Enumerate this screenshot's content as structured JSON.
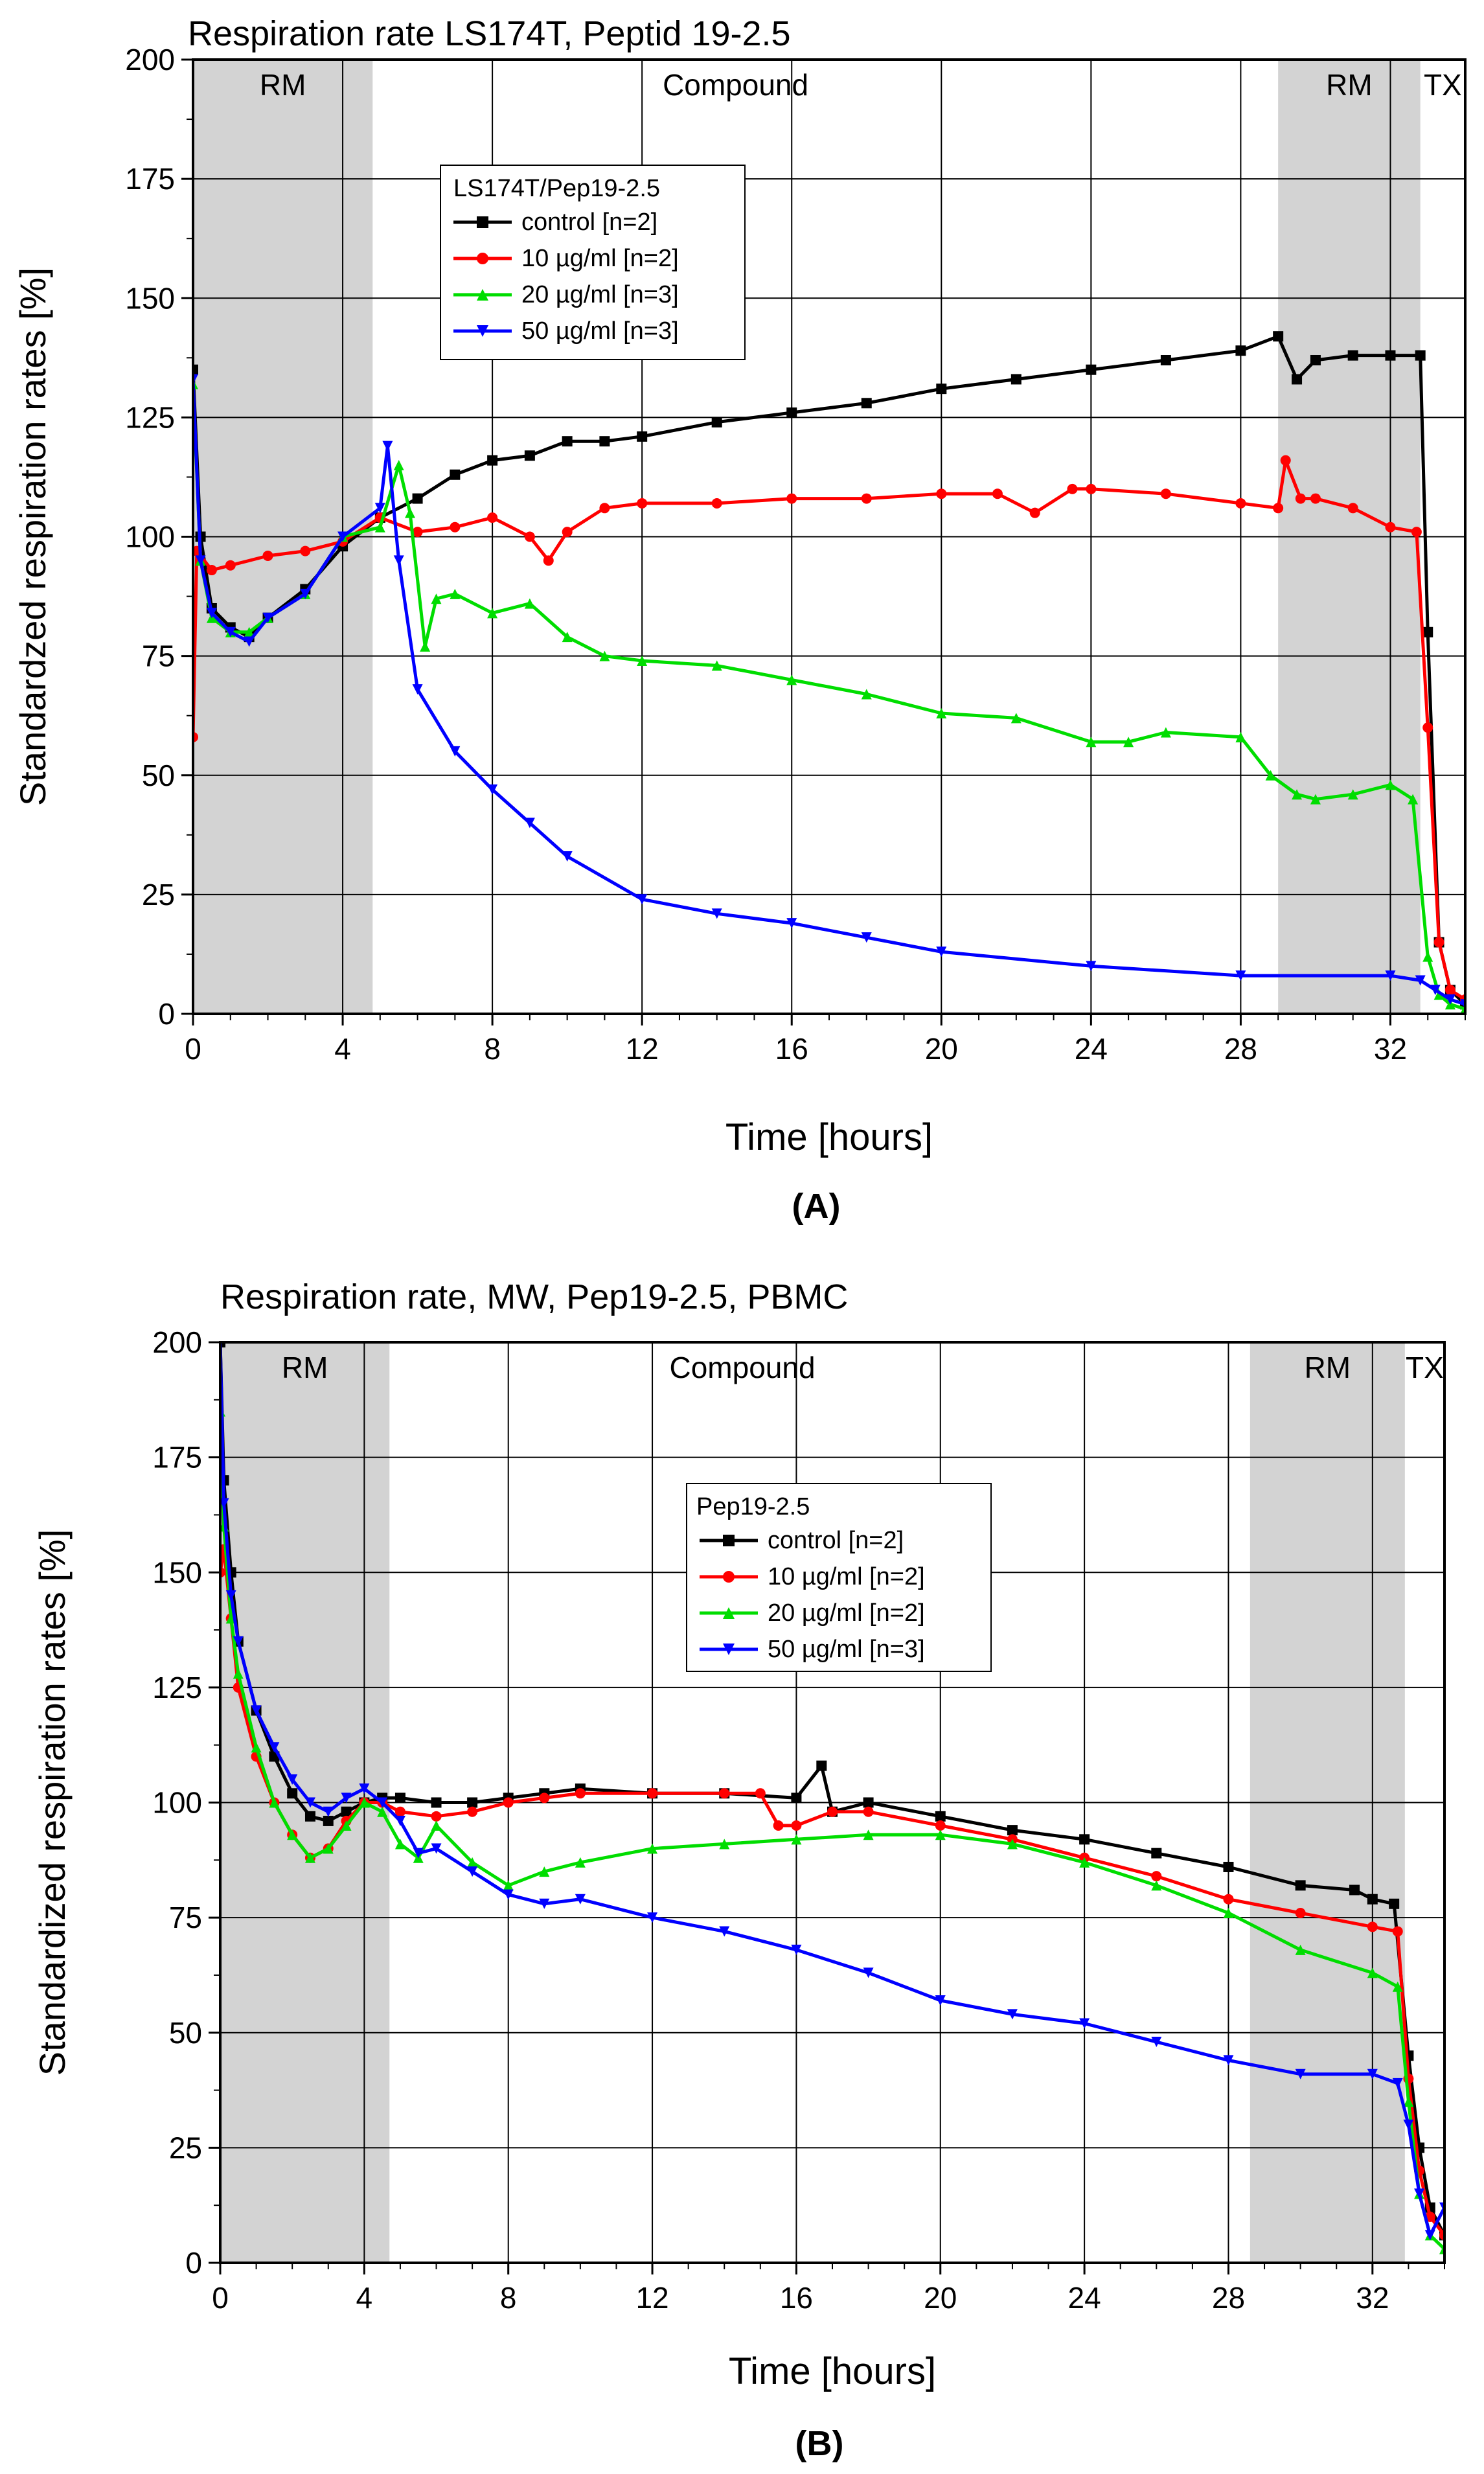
{
  "chart_data": [
    {
      "type": "line",
      "panel_label": "(A)",
      "title": "Respiration rate LS174T, Peptid 19-2.5",
      "xlabel": "Time [hours]",
      "ylabel": "Standardzed respiration rates [%]",
      "xlim": [
        0,
        34
      ],
      "ylim": [
        0,
        200
      ],
      "xticks": [
        0,
        4,
        8,
        12,
        16,
        20,
        24,
        28,
        32
      ],
      "yticks": [
        0,
        25,
        50,
        75,
        100,
        125,
        150,
        175,
        200
      ],
      "grid": true,
      "regions": [
        {
          "label": "RM",
          "x_start": 0,
          "x_end": 4.8,
          "shaded": true
        },
        {
          "label": "Compound",
          "x_start": 4.8,
          "x_end": 29,
          "shaded": false
        },
        {
          "label": "RM",
          "x_start": 29,
          "x_end": 32.8,
          "shaded": true
        },
        {
          "label": "TX",
          "x_start": 32.8,
          "x_end": 34,
          "shaded": false
        }
      ],
      "legend": {
        "title": "LS174T/Pep19-2.5",
        "placement": "upper-left"
      },
      "series": [
        {
          "name": "control [n=2]",
          "color": "#000000",
          "marker": "square",
          "x": [
            0,
            0.2,
            0.5,
            1,
            1.5,
            2,
            3,
            4,
            5,
            6,
            7,
            8,
            9,
            10,
            11,
            12,
            14,
            16,
            18,
            20,
            22,
            24,
            26,
            28,
            29,
            29.5,
            30,
            31,
            32,
            32.8,
            33,
            33.3,
            33.6,
            34
          ],
          "y": [
            135,
            100,
            85,
            81,
            79,
            83,
            89,
            98,
            104,
            108,
            113,
            116,
            117,
            120,
            120,
            121,
            124,
            126,
            128,
            131,
            133,
            135,
            137,
            139,
            142,
            133,
            137,
            138,
            138,
            138,
            80,
            15,
            5,
            2
          ]
        },
        {
          "name": "10 µg/ml [n=2]",
          "color": "#ff0000",
          "marker": "circle",
          "x": [
            0,
            0.1,
            0.5,
            1,
            2,
            3,
            4,
            5,
            6,
            7,
            8,
            9,
            9.5,
            10,
            11,
            12,
            14,
            16,
            18,
            20,
            21.5,
            22.5,
            23.5,
            24,
            26,
            28,
            29,
            29.2,
            29.6,
            30,
            31,
            32,
            32.7,
            33,
            33.3,
            33.6,
            34
          ],
          "y": [
            58,
            97,
            93,
            94,
            96,
            97,
            99,
            104,
            101,
            102,
            104,
            100,
            95,
            101,
            106,
            107,
            107,
            108,
            108,
            109,
            109,
            105,
            110,
            110,
            109,
            107,
            106,
            116,
            108,
            108,
            106,
            102,
            101,
            60,
            15,
            5,
            3
          ]
        },
        {
          "name": "20 µg/ml [n=3]",
          "color": "#00dd00",
          "marker": "triangle-up",
          "x": [
            0,
            0.2,
            0.5,
            1,
            1.5,
            2,
            3,
            4,
            5,
            5.5,
            5.8,
            6.2,
            6.5,
            7,
            8,
            9,
            10,
            11,
            12,
            14,
            16,
            18,
            20,
            22,
            24,
            25,
            26,
            28,
            28.8,
            29.5,
            30,
            31,
            32,
            32.6,
            33,
            33.3,
            33.6,
            34
          ],
          "y": [
            132,
            95,
            83,
            80,
            80,
            83,
            88,
            100,
            102,
            115,
            105,
            77,
            87,
            88,
            84,
            86,
            79,
            75,
            74,
            73,
            70,
            67,
            63,
            62,
            57,
            57,
            59,
            58,
            50,
            46,
            45,
            46,
            48,
            45,
            12,
            4,
            2,
            1
          ]
        },
        {
          "name": "50 µg/ml [n=3]",
          "color": "#0000ff",
          "marker": "triangle-down",
          "x": [
            0,
            0.2,
            0.5,
            1,
            1.5,
            2,
            3,
            4,
            5,
            5.2,
            5.5,
            6,
            7,
            8,
            9,
            10,
            12,
            14,
            16,
            18,
            20,
            24,
            28,
            32,
            32.8,
            33.2,
            33.6,
            34
          ],
          "y": [
            133,
            95,
            84,
            80,
            78,
            83,
            88,
            100,
            106,
            119,
            95,
            68,
            55,
            47,
            40,
            33,
            24,
            21,
            19,
            16,
            13,
            10,
            8,
            8,
            7,
            5,
            3,
            2
          ]
        }
      ]
    },
    {
      "type": "line",
      "panel_label": "(B)",
      "title": "Respiration rate, MW, Pep19-2.5, PBMC",
      "xlabel": "Time [hours]",
      "ylabel": "Standardized respiration rates [%]",
      "xlim": [
        0,
        34
      ],
      "ylim": [
        0,
        200
      ],
      "xticks": [
        0,
        4,
        8,
        12,
        16,
        20,
        24,
        28,
        32
      ],
      "yticks": [
        0,
        25,
        50,
        75,
        100,
        125,
        150,
        175,
        200
      ],
      "grid": true,
      "regions": [
        {
          "label": "RM",
          "x_start": 0,
          "x_end": 4.7,
          "shaded": true
        },
        {
          "label": "Compound",
          "x_start": 4.7,
          "x_end": 28.6,
          "shaded": false
        },
        {
          "label": "RM",
          "x_start": 28.6,
          "x_end": 32.9,
          "shaded": true
        },
        {
          "label": "TX",
          "x_start": 32.9,
          "x_end": 34,
          "shaded": false
        }
      ],
      "legend": {
        "title": "Pep19-2.5",
        "placement": "center-left"
      },
      "series": [
        {
          "name": "control [n=2]",
          "color": "#000000",
          "marker": "square",
          "x": [
            0,
            0.1,
            0.3,
            0.5,
            1,
            1.5,
            2,
            2.5,
            3,
            3.5,
            4,
            4.5,
            5,
            6,
            7,
            8,
            9,
            10,
            12,
            14,
            16,
            16.7,
            17,
            18,
            20,
            22,
            24,
            26,
            28,
            30,
            31.5,
            32,
            32.6,
            33,
            33.3,
            33.6,
            34
          ],
          "y": [
            200,
            170,
            150,
            135,
            120,
            110,
            102,
            97,
            96,
            98,
            100,
            101,
            101,
            100,
            100,
            101,
            102,
            103,
            102,
            102,
            101,
            108,
            98,
            100,
            97,
            94,
            92,
            89,
            86,
            82,
            81,
            79,
            78,
            45,
            25,
            12,
            6
          ]
        },
        {
          "name": "10 µg/ml [n=2]",
          "color": "#ff0000",
          "marker": "circle",
          "x": [
            0,
            0.1,
            0.3,
            0.5,
            1,
            1.5,
            2,
            2.5,
            3,
            3.5,
            4,
            4.5,
            5,
            6,
            7,
            8,
            9,
            10,
            12,
            14,
            15,
            15.5,
            16,
            17,
            18,
            20,
            22,
            24,
            26,
            28,
            30,
            32,
            32.7,
            33,
            33.3,
            33.6,
            34
          ],
          "y": [
            150,
            155,
            140,
            125,
            110,
            100,
            93,
            88,
            90,
            96,
            100,
            100,
            98,
            97,
            98,
            100,
            101,
            102,
            102,
            102,
            102,
            95,
            95,
            98,
            98,
            95,
            92,
            88,
            84,
            79,
            76,
            73,
            72,
            40,
            20,
            10,
            6
          ]
        },
        {
          "name": "20 µg/ml [n=2]",
          "color": "#00dd00",
          "marker": "triangle-up",
          "x": [
            0,
            0.1,
            0.3,
            0.5,
            1,
            1.5,
            2,
            2.5,
            3,
            3.5,
            4,
            4.5,
            5,
            5.5,
            6,
            7,
            8,
            9,
            10,
            12,
            14,
            16,
            18,
            20,
            22,
            24,
            26,
            28,
            30,
            32,
            32.7,
            33,
            33.3,
            33.6,
            34
          ],
          "y": [
            185,
            160,
            140,
            128,
            112,
            100,
            93,
            88,
            90,
            95,
            100,
            98,
            91,
            88,
            95,
            87,
            82,
            85,
            87,
            90,
            91,
            92,
            93,
            93,
            91,
            87,
            82,
            76,
            68,
            63,
            60,
            35,
            15,
            6,
            3
          ]
        },
        {
          "name": "50 µg/ml [n=3]",
          "color": "#0000ff",
          "marker": "triangle-down",
          "x": [
            0,
            0.1,
            0.3,
            0.5,
            1,
            1.5,
            2,
            2.5,
            3,
            3.5,
            4,
            4.5,
            5,
            5.5,
            6,
            7,
            8,
            9,
            10,
            12,
            14,
            16,
            18,
            20,
            22,
            24,
            26,
            28,
            30,
            32,
            32.7,
            33,
            33.3,
            33.6,
            34
          ],
          "y": [
            200,
            165,
            145,
            135,
            120,
            112,
            105,
            100,
            98,
            101,
            103,
            100,
            96,
            89,
            90,
            85,
            80,
            78,
            79,
            75,
            72,
            68,
            63,
            57,
            54,
            52,
            48,
            44,
            41,
            41,
            39,
            30,
            15,
            6,
            12
          ]
        }
      ]
    }
  ]
}
